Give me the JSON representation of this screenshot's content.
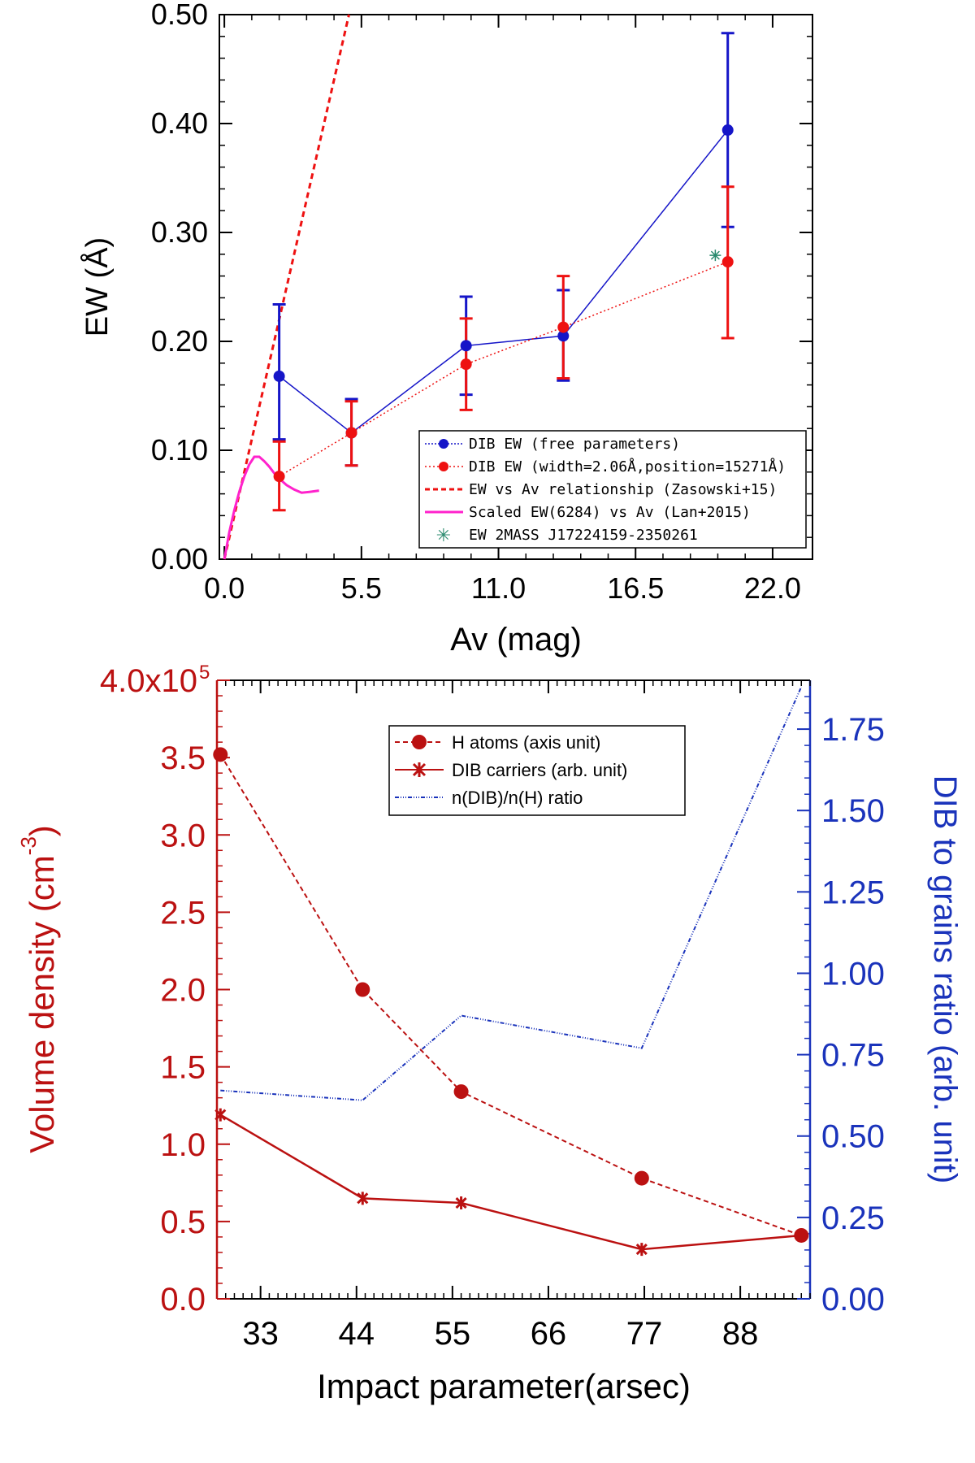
{
  "colors": {
    "red": "#ee1111",
    "blue": "#1515c8",
    "magenta": "#ff22cc",
    "green": "#2a8a6e",
    "darkred": "#bb1111",
    "darkblue": "#1a33bb"
  },
  "chart_data": [
    {
      "type": "scatter",
      "id": "top",
      "xlabel": "Av (mag)",
      "ylabel": "EW (Å)",
      "xlim": [
        -0.2,
        23.6
      ],
      "ylim": [
        0.0,
        0.5
      ],
      "xticks": [
        0.0,
        5.5,
        11.0,
        16.5,
        22.0
      ],
      "xtick_labels": [
        "0.0",
        "5.5",
        "11.0",
        "16.5",
        "22.0"
      ],
      "yticks": [
        0.0,
        0.1,
        0.2,
        0.3,
        0.4,
        0.5
      ],
      "ytick_labels": [
        "0.00",
        "0.10",
        "0.20",
        "0.30",
        "0.40",
        "0.50"
      ],
      "legend_position": "bottom-right",
      "series": [
        {
          "name": "DIB EW (free parameters)",
          "style": "blue-dots-solid",
          "x": [
            2.2,
            5.1,
            9.7,
            13.6,
            20.2
          ],
          "y": [
            0.168,
            0.116,
            0.196,
            0.205,
            0.394
          ],
          "err_low": [
            0.058,
            0.03,
            0.045,
            0.041,
            0.089
          ],
          "err_high": [
            0.066,
            0.031,
            0.045,
            0.042,
            0.089
          ]
        },
        {
          "name": "DIB EW (width=2.06Å,position=15271Å)",
          "style": "red-dots-dotted",
          "x": [
            2.2,
            5.1,
            9.7,
            13.6,
            20.2
          ],
          "y": [
            0.076,
            0.116,
            0.179,
            0.213,
            0.273
          ],
          "err_low": [
            0.031,
            0.03,
            0.042,
            0.047,
            0.07
          ],
          "err_high": [
            0.032,
            0.029,
            0.042,
            0.047,
            0.069
          ]
        },
        {
          "name": "EW vs Av relationship (Zasowski+15)",
          "style": "red-dashed",
          "x": [
            0.0,
            5.0
          ],
          "y": [
            0.0,
            0.5
          ]
        },
        {
          "name": "Scaled EW(6284) vs Av (Lan+2015)",
          "style": "magenta-solid",
          "x": [
            0.0,
            0.2,
            0.4,
            0.6,
            0.8,
            1.0,
            1.2,
            1.4,
            1.6,
            1.8,
            2.0,
            2.2,
            2.5,
            2.8,
            3.1,
            3.5,
            3.8
          ],
          "y": [
            0.0,
            0.025,
            0.045,
            0.062,
            0.076,
            0.087,
            0.094,
            0.094,
            0.09,
            0.085,
            0.079,
            0.074,
            0.068,
            0.064,
            0.061,
            0.062,
            0.063
          ]
        },
        {
          "name": "EW 2MASS J17224159-2350261",
          "style": "green-asterisk",
          "x": [
            19.7
          ],
          "y": [
            0.279
          ]
        }
      ]
    },
    {
      "type": "line",
      "id": "bottom",
      "xlabel": "Impact parameter(arsec)",
      "ylabel_left": "Volume density (cm",
      "ylabel_left_sup": "-3",
      "ylabel_left_close": ")",
      "ylabel_right": "DIB to grains ratio (arb. unit)",
      "xlim": [
        28,
        96
      ],
      "ylim_left": [
        0.0,
        4.0
      ],
      "ylim_right": [
        0.0,
        1.9
      ],
      "xticks": [
        33,
        44,
        55,
        66,
        77,
        88
      ],
      "xtick_labels": [
        "33",
        "44",
        "55",
        "66",
        "77",
        "88"
      ],
      "yticks_left": [
        0.0,
        0.5,
        1.0,
        1.5,
        2.0,
        2.5,
        3.0,
        3.5,
        4.0
      ],
      "ytick_labels_left": [
        "0.0",
        "0.5",
        "1.0",
        "1.5",
        "2.0",
        "2.5",
        "3.0",
        "3.5",
        "4.0x10"
      ],
      "ytick_top_sup": "5",
      "yticks_right": [
        0.0,
        0.25,
        0.5,
        0.75,
        1.0,
        1.25,
        1.5,
        1.75
      ],
      "ytick_labels_right": [
        "0.00",
        "0.25",
        "0.50",
        "0.75",
        "1.00",
        "1.25",
        "1.50",
        "1.75"
      ],
      "legend_position": "top-center",
      "series": [
        {
          "name": "H atoms (axis unit)",
          "style": "red-dashed-dots",
          "x": [
            28.4,
            44.7,
            56.0,
            76.7,
            95.0
          ],
          "y": [
            3.52,
            2.0,
            1.34,
            0.78,
            0.41
          ]
        },
        {
          "name": "DIB carriers (arb. unit)",
          "style": "red-solid-stars",
          "x": [
            28.4,
            44.7,
            56.0,
            76.7,
            95.0
          ],
          "y": [
            1.19,
            0.65,
            0.62,
            0.32,
            0.41
          ]
        },
        {
          "name": "n(DIB)/n(H) ratio",
          "style": "blue-dashdot",
          "axis": "right",
          "x": [
            28.4,
            44.7,
            56.0,
            76.7,
            95.0
          ],
          "y": [
            0.64,
            0.61,
            0.87,
            0.77,
            1.88
          ]
        }
      ]
    }
  ]
}
